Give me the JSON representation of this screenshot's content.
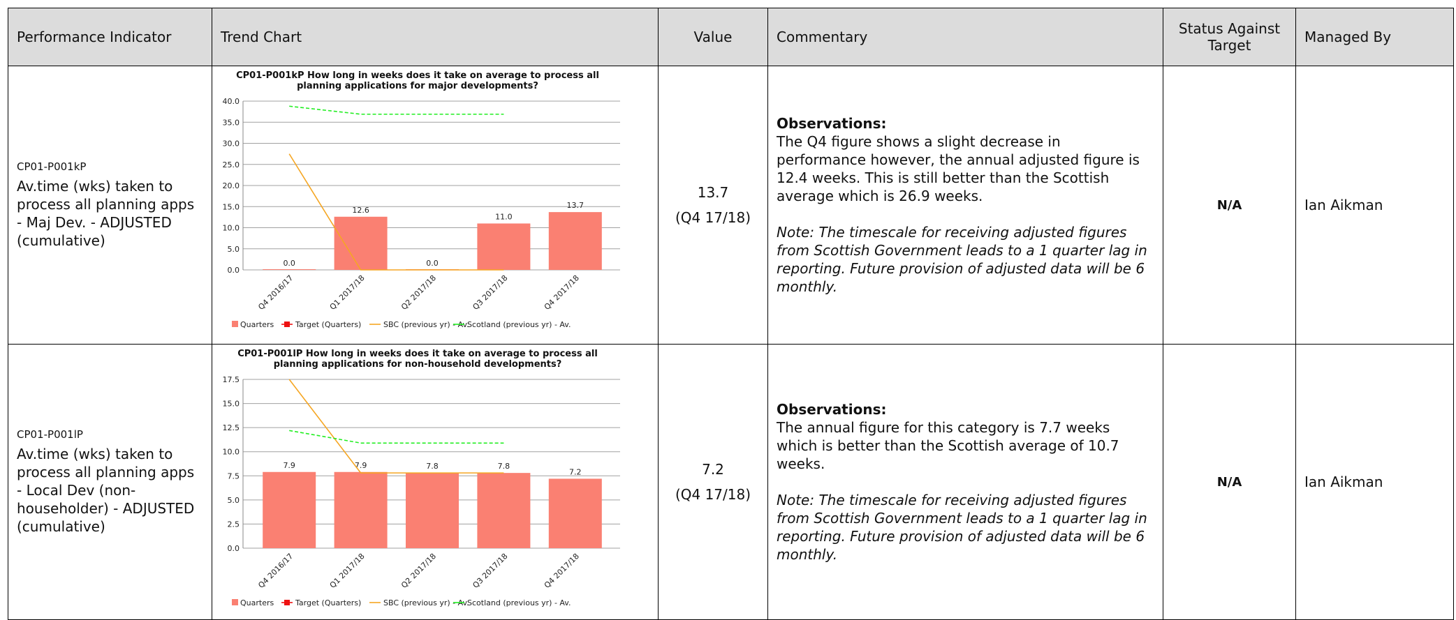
{
  "table": {
    "columns": [
      "Performance Indicator",
      "Trend Chart",
      "Value",
      "Commentary",
      "Status Against Target",
      "Managed By"
    ],
    "rows": [
      {
        "code": "CP01-P001kP",
        "name": "Av.time (wks) taken to process all planning apps - Maj Dev. - ADJUSTED (cumulative)",
        "value": "13.7",
        "period": "(Q4 17/18)",
        "heading": "Observations:",
        "text": "The Q4 figure shows a slight decrease in performance however, the annual adjusted figure is 12.4 weeks. This is still better than the Scottish average which is 26.9 weeks.",
        "note": "Note: The timescale for receiving adjusted figures from Scottish Government leads to a 1 quarter lag in reporting.  Future provision of adjusted data will be 6 monthly.",
        "status": "N/A",
        "managed_by": "Ian Aikman"
      },
      {
        "code": "CP01-P001lP",
        "name": "Av.time (wks) taken to process all planning apps - Local Dev (non-householder) - ADJUSTED (cumulative)",
        "value": "7.2",
        "period": "(Q4 17/18)",
        "heading": "Observations:",
        "text": "The annual figure for this category is 7.7 weeks which is better than the Scottish average of 10.7 weeks.",
        "note": "Note: The timescale for receiving adjusted figures from Scottish Government leads to a 1 quarter lag in reporting.  Future provision of adjusted data will be 6 monthly.",
        "status": "N/A",
        "managed_by": "Ian Aikman"
      }
    ]
  },
  "chart_data": [
    {
      "type": "bar",
      "title": "CP01-P001kP How long in weeks does it take on average to process all planning applications for major developments?",
      "categories": [
        "Q4 2016/17",
        "Q1 2017/18",
        "Q2 2017/18",
        "Q3 2017/18",
        "Q4 2017/18"
      ],
      "series": [
        {
          "name": "Quarters",
          "type": "bar",
          "color": "#fa8072",
          "values": [
            0,
            12.6,
            0,
            11,
            13.7
          ],
          "value_labels": [
            "0.0",
            "12.6",
            "0.0",
            "11.0",
            "13.7"
          ]
        },
        {
          "name": "Target (Quarters)",
          "type": "line",
          "marker": true,
          "color": "#ee1111",
          "values": [
            null,
            null,
            null,
            null,
            null
          ]
        },
        {
          "name": "SBC (previous yr) - Av.",
          "type": "line",
          "color": "#f5a623",
          "values": [
            27.5,
            0,
            0,
            0,
            null
          ]
        },
        {
          "name": "Scotland (previous yr) - Av.",
          "type": "line",
          "dashed": true,
          "color": "#22ee22",
          "values": [
            38.8,
            36.9,
            36.9,
            36.9,
            null
          ]
        }
      ],
      "ylim": [
        0,
        40
      ],
      "yticks": [
        {
          "value": 0,
          "label": "0.0"
        },
        {
          "value": 5,
          "label": "5.0"
        },
        {
          "value": 10,
          "label": "10.0"
        },
        {
          "value": 15,
          "label": "15.0"
        },
        {
          "value": 20,
          "label": "20.0"
        },
        {
          "value": 25,
          "label": "25.0"
        },
        {
          "value": 30,
          "label": "30.0"
        },
        {
          "value": 35,
          "label": "35.0"
        },
        {
          "value": 40,
          "label": "40.0"
        }
      ],
      "grid": true
    },
    {
      "type": "bar",
      "title": "CP01-P001lP How long in weeks does it take on average to process all planning applications for non-household developments?",
      "categories": [
        "Q4 2016/17",
        "Q1 2017/18",
        "Q2 2017/18",
        "Q3 2017/18",
        "Q4 2017/18"
      ],
      "series": [
        {
          "name": "Quarters",
          "type": "bar",
          "color": "#fa8072",
          "values": [
            7.9,
            7.9,
            7.8,
            7.8,
            7.2
          ]
        },
        {
          "name": "Target (Quarters)",
          "type": "line",
          "marker": true,
          "color": "#ee1111",
          "values": [
            null,
            null,
            null,
            null,
            null
          ]
        },
        {
          "name": "SBC (previous yr) - Av.",
          "type": "line",
          "color": "#f5a623",
          "values": [
            17.5,
            7.8,
            7.8,
            7.8,
            null
          ]
        },
        {
          "name": "Scotland (previous yr) - Av.",
          "type": "line",
          "dashed": true,
          "color": "#22ee22",
          "values": [
            12.2,
            10.9,
            10.9,
            10.9,
            null
          ]
        }
      ],
      "ylim": [
        0,
        17.5
      ],
      "yticks": [
        {
          "value": 0,
          "label": "0.0"
        },
        {
          "value": 2.5,
          "label": "2.5"
        },
        {
          "value": 5,
          "label": "5.0"
        },
        {
          "value": 7.5,
          "label": "7.5"
        },
        {
          "value": 10,
          "label": "10.0"
        },
        {
          "value": 12.5,
          "label": "12.5"
        },
        {
          "value": 15,
          "label": "15.0"
        },
        {
          "value": 17.5,
          "label": "17.5"
        }
      ],
      "grid": true
    }
  ]
}
